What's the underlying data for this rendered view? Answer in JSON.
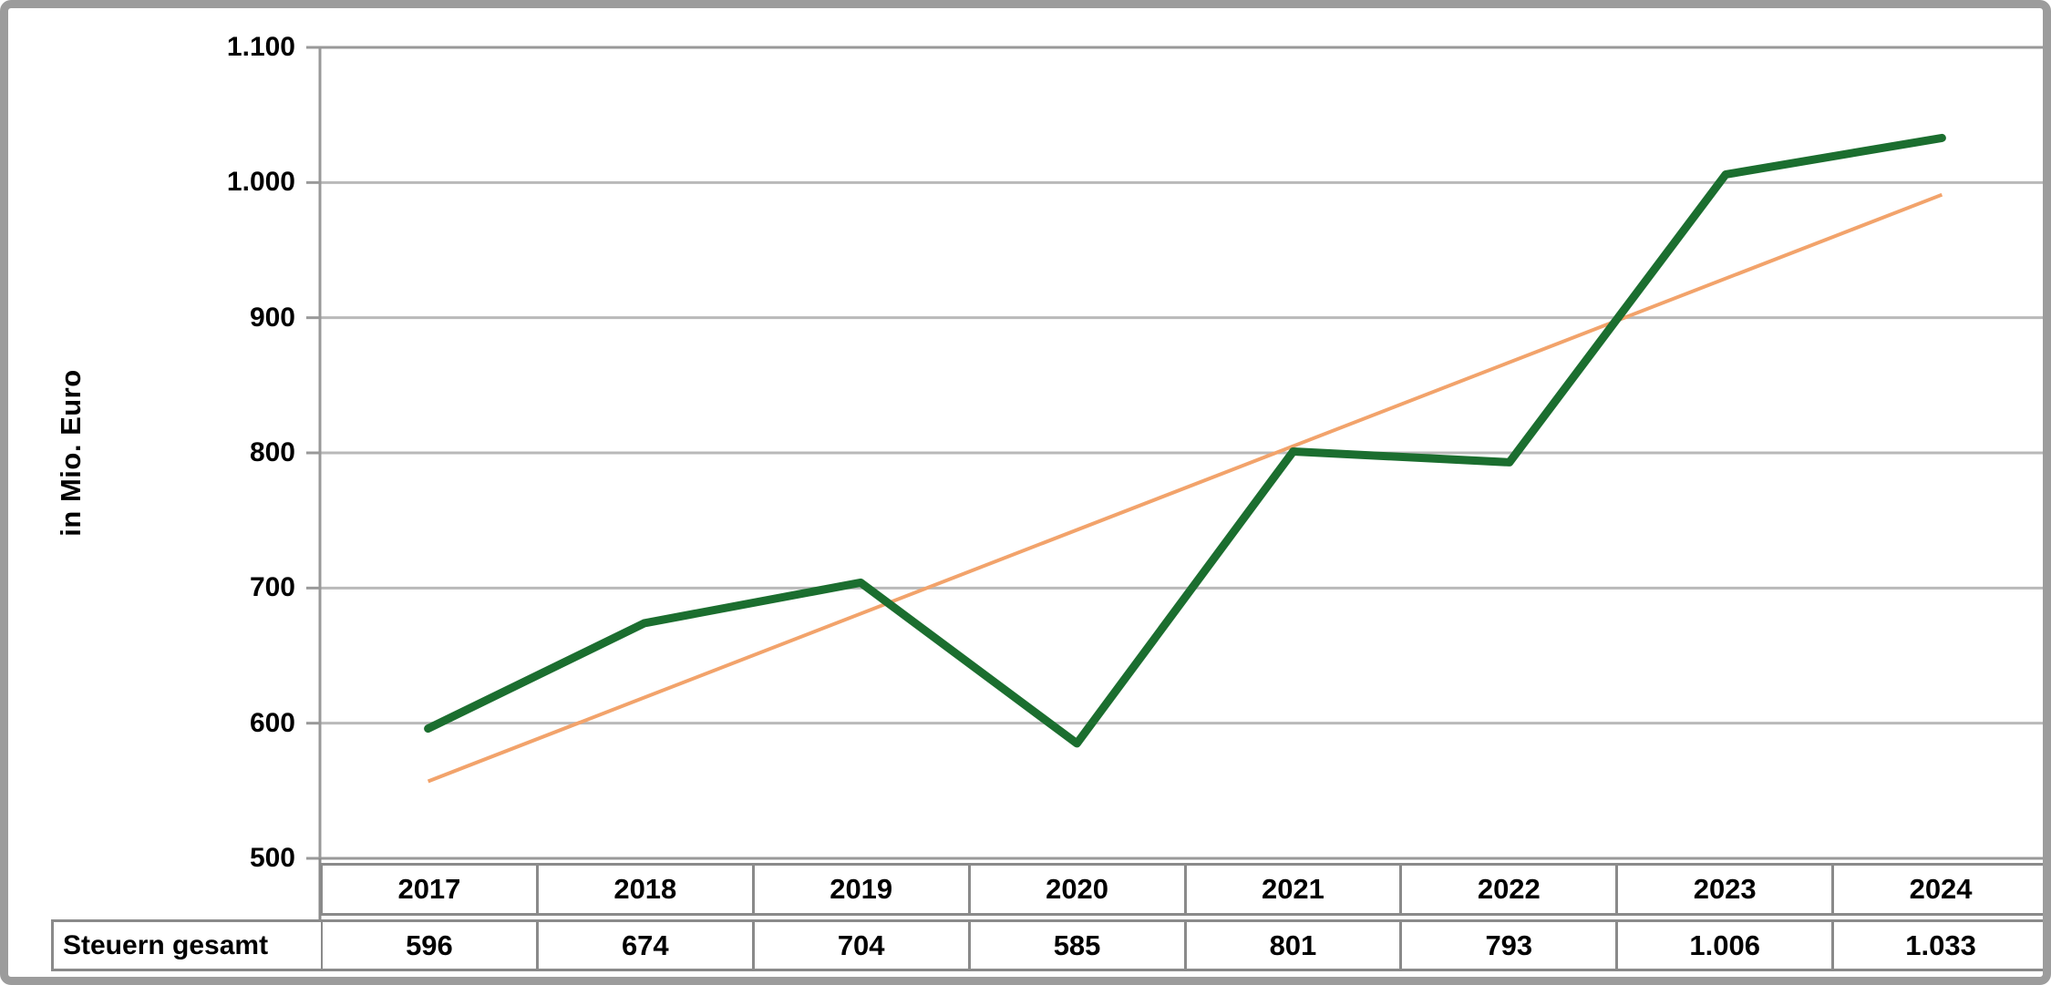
{
  "colors": {
    "series_green": "#1b6e2f",
    "trendline_orange": "#f2a36b",
    "gridline_gray": "#b9b9b9",
    "plot_border_gray": "#999999",
    "table_border_gray": "#8a8a8a",
    "frame_gray": "#9c9c9c",
    "text_black": "#000000"
  },
  "chart_data": {
    "type": "line",
    "title": "",
    "xlabel": "",
    "ylabel": "in Mio. Euro",
    "categories": [
      "2017",
      "2018",
      "2019",
      "2020",
      "2021",
      "2022",
      "2023",
      "2024"
    ],
    "series": [
      {
        "name": "Steuern gesamt",
        "values": [
          596,
          674,
          704,
          585,
          801,
          793,
          1006,
          1033
        ],
        "display_values": [
          "596",
          "674",
          "704",
          "585",
          "801",
          "793",
          "1.006",
          "1.033"
        ],
        "color": "#1b6e2f"
      }
    ],
    "trendline": {
      "type": "linear",
      "start_value": 557,
      "end_value": 991,
      "color": "#f2a36b"
    },
    "ylim": [
      500,
      1100
    ],
    "ytick_values": [
      1100,
      1000,
      900,
      800,
      700,
      600,
      500
    ],
    "ytick_labels": [
      "1.100",
      "1.000",
      "900",
      "800",
      "700",
      "600",
      "500"
    ],
    "grid": true,
    "number_format": "de-DE",
    "legend_position": "data-table-below-plot"
  }
}
